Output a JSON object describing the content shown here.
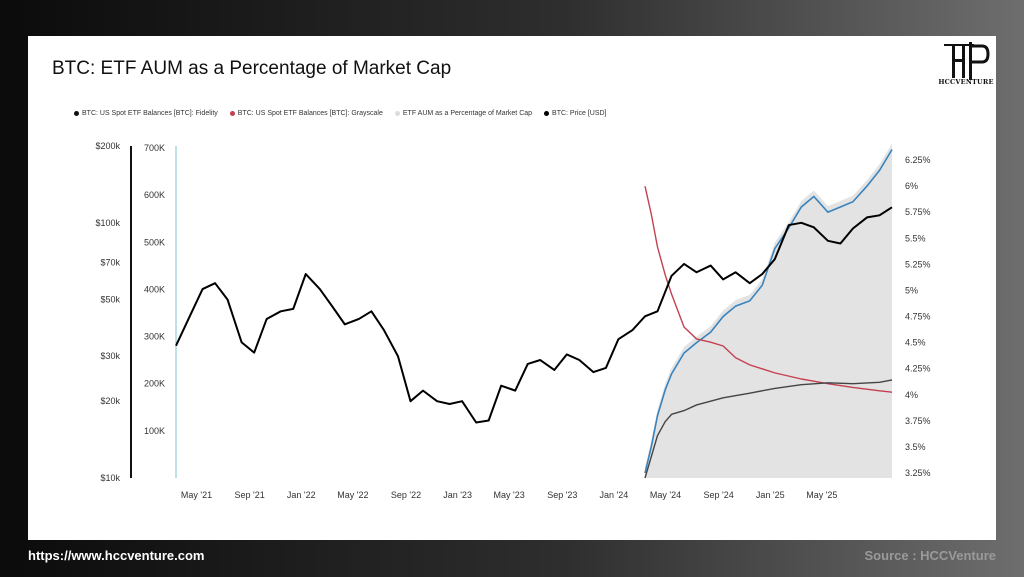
{
  "header": {
    "title": "BTC: ETF AUM as a Percentage of Market Cap"
  },
  "brand": {
    "logo_text": "HCCVENTURE"
  },
  "footer": {
    "url": "https://www.hccventure.com",
    "source": "Source : HCCVenture"
  },
  "colors": {
    "fidelity": "#111111",
    "grayscale": "#c44050",
    "pct_area": "#dcdcdc",
    "price": "#000000",
    "blue_line": "#3a84bd",
    "gray_line": "#444444"
  },
  "chart_data": {
    "type": "line",
    "title": "BTC: ETF AUM as a Percentage of Market Cap",
    "legend": [
      "BTC: US Spot ETF Balances [BTC]: Fidelity",
      "BTC: US Spot ETF Balances [BTC]: Grayscale",
      "ETF AUM as a Percentage of Market Cap",
      "BTC: Price [USD]"
    ],
    "x_ticks": [
      "May '21",
      "Sep '21",
      "Jan '22",
      "May '22",
      "Sep '22",
      "Jan '23",
      "May '23",
      "Sep '23",
      "Jan '24",
      "May '24",
      "Sep '24",
      "Jan '25",
      "May '25"
    ],
    "x_range": [
      2021.0,
      2025.58
    ],
    "price_axis": {
      "scale": "log",
      "ticks": [
        "$200k",
        "$100k",
        "$70k",
        "$50k",
        "$30k",
        "$20k",
        "$10k"
      ],
      "range": [
        10000,
        200000
      ]
    },
    "balance_axis": {
      "ticks": [
        "700K",
        "600K",
        "500K",
        "400K",
        "300K",
        "200K",
        "100K"
      ],
      "range": [
        0,
        700000
      ]
    },
    "pct_axis": {
      "ticks": [
        "6.25%",
        "6%",
        "5.75%",
        "5.5%",
        "5.25%",
        "5%",
        "4.75%",
        "4.5%",
        "4.25%",
        "4%",
        "3.75%",
        "3.5%",
        "3.25%"
      ],
      "range": [
        3.25,
        6.25
      ]
    },
    "series": [
      {
        "name": "BTC: Price [USD]",
        "axis": "price",
        "points": [
          [
            2021.0,
            33000
          ],
          [
            2021.08,
            42000
          ],
          [
            2021.17,
            55000
          ],
          [
            2021.25,
            58000
          ],
          [
            2021.33,
            50000
          ],
          [
            2021.42,
            34000
          ],
          [
            2021.5,
            31000
          ],
          [
            2021.58,
            42000
          ],
          [
            2021.67,
            45000
          ],
          [
            2021.75,
            46000
          ],
          [
            2021.83,
            63000
          ],
          [
            2021.92,
            55000
          ],
          [
            2022.0,
            47000
          ],
          [
            2022.08,
            40000
          ],
          [
            2022.17,
            42000
          ],
          [
            2022.25,
            45000
          ],
          [
            2022.33,
            38000
          ],
          [
            2022.42,
            30000
          ],
          [
            2022.5,
            20000
          ],
          [
            2022.58,
            22000
          ],
          [
            2022.67,
            20000
          ],
          [
            2022.75,
            19500
          ],
          [
            2022.83,
            20000
          ],
          [
            2022.92,
            16500
          ],
          [
            2023.0,
            16800
          ],
          [
            2023.08,
            23000
          ],
          [
            2023.17,
            22000
          ],
          [
            2023.25,
            28000
          ],
          [
            2023.33,
            29000
          ],
          [
            2023.42,
            26500
          ],
          [
            2023.5,
            30500
          ],
          [
            2023.58,
            29000
          ],
          [
            2023.67,
            26000
          ],
          [
            2023.75,
            27000
          ],
          [
            2023.83,
            35000
          ],
          [
            2023.92,
            38000
          ],
          [
            2024.0,
            43000
          ],
          [
            2024.08,
            45000
          ],
          [
            2024.17,
            62000
          ],
          [
            2024.25,
            69000
          ],
          [
            2024.33,
            64000
          ],
          [
            2024.42,
            68000
          ],
          [
            2024.5,
            60000
          ],
          [
            2024.58,
            64000
          ],
          [
            2024.67,
            58000
          ],
          [
            2024.75,
            63000
          ],
          [
            2024.83,
            72000
          ],
          [
            2024.92,
            98000
          ],
          [
            2025.0,
            100000
          ],
          [
            2025.08,
            96000
          ],
          [
            2025.17,
            85000
          ],
          [
            2025.25,
            83000
          ],
          [
            2025.33,
            95000
          ],
          [
            2025.42,
            105000
          ],
          [
            2025.5,
            107000
          ],
          [
            2025.58,
            115000
          ]
        ]
      },
      {
        "name": "BTC: US Spot ETF Balances [BTC]: Grayscale",
        "axis": "balance",
        "points": [
          [
            2024.0,
            619000
          ],
          [
            2024.04,
            560000
          ],
          [
            2024.08,
            490000
          ],
          [
            2024.13,
            430000
          ],
          [
            2024.17,
            390000
          ],
          [
            2024.25,
            320000
          ],
          [
            2024.33,
            295000
          ],
          [
            2024.42,
            288000
          ],
          [
            2024.5,
            280000
          ],
          [
            2024.58,
            255000
          ],
          [
            2024.67,
            240000
          ],
          [
            2024.83,
            223000
          ],
          [
            2025.0,
            210000
          ],
          [
            2025.17,
            200000
          ],
          [
            2025.33,
            192000
          ],
          [
            2025.5,
            185000
          ],
          [
            2025.58,
            182000
          ]
        ]
      },
      {
        "name": "BTC: US Spot ETF Balances [BTC]: Fidelity",
        "axis": "balance",
        "points": [
          [
            2024.0,
            0
          ],
          [
            2024.04,
            45000
          ],
          [
            2024.08,
            90000
          ],
          [
            2024.13,
            120000
          ],
          [
            2024.17,
            135000
          ],
          [
            2024.25,
            143000
          ],
          [
            2024.33,
            155000
          ],
          [
            2024.5,
            170000
          ],
          [
            2024.67,
            180000
          ],
          [
            2024.83,
            190000
          ],
          [
            2025.0,
            198000
          ],
          [
            2025.17,
            202000
          ],
          [
            2025.33,
            200000
          ],
          [
            2025.5,
            203000
          ],
          [
            2025.58,
            208000
          ]
        ]
      },
      {
        "name": "ETF AUM as a Percentage of Market Cap",
        "axis": "pct",
        "points": [
          [
            2024.0,
            3.25
          ],
          [
            2024.04,
            3.5
          ],
          [
            2024.08,
            3.8
          ],
          [
            2024.13,
            4.05
          ],
          [
            2024.17,
            4.2
          ],
          [
            2024.25,
            4.4
          ],
          [
            2024.33,
            4.5
          ],
          [
            2024.42,
            4.6
          ],
          [
            2024.5,
            4.75
          ],
          [
            2024.58,
            4.85
          ],
          [
            2024.67,
            4.9
          ],
          [
            2024.75,
            5.05
          ],
          [
            2024.83,
            5.4
          ],
          [
            2024.92,
            5.6
          ],
          [
            2025.0,
            5.8
          ],
          [
            2025.08,
            5.9
          ],
          [
            2025.17,
            5.75
          ],
          [
            2025.25,
            5.8
          ],
          [
            2025.33,
            5.85
          ],
          [
            2025.42,
            6.0
          ],
          [
            2025.5,
            6.15
          ],
          [
            2025.58,
            6.35
          ]
        ]
      }
    ]
  }
}
